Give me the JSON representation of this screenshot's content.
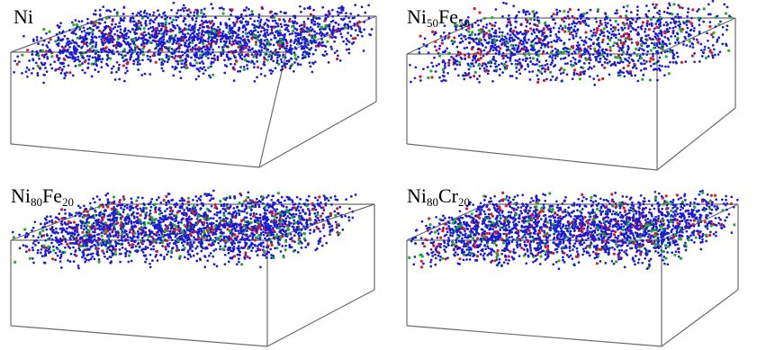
{
  "panels": [
    {
      "id": "ni",
      "base": "Ni",
      "parts": []
    },
    {
      "id": "ni50fe50",
      "base": "Ni",
      "parts": [
        {
          "sub": "50",
          "el": "Fe"
        },
        {
          "sub": "50",
          "el": ""
        }
      ]
    },
    {
      "id": "ni80fe20",
      "base": "Ni",
      "parts": [
        {
          "sub": "80",
          "el": "Fe"
        },
        {
          "sub": "20",
          "el": ""
        }
      ]
    },
    {
      "id": "ni80cr20",
      "base": "Ni",
      "parts": [
        {
          "sub": "80",
          "el": "Cr"
        },
        {
          "sub": "20",
          "el": ""
        }
      ]
    }
  ],
  "colors": {
    "blue": "#1a1ad6",
    "red": "#d61a2a",
    "green": "#1fae2a",
    "box": "#6b6b6b"
  }
}
